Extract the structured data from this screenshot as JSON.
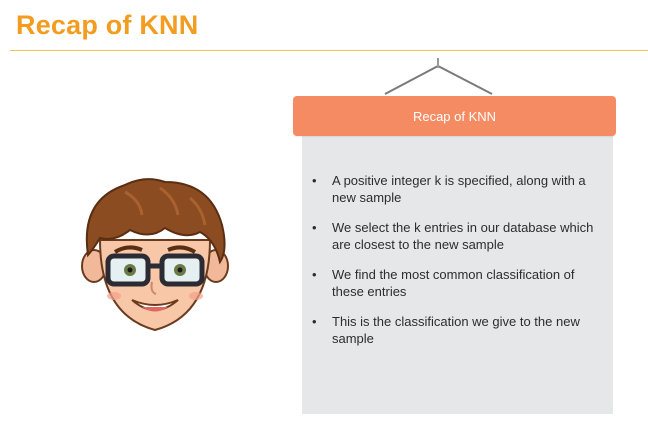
{
  "slide": {
    "title": "Recap of KNN"
  },
  "board": {
    "header": "Recap of KNN",
    "bullets": [
      "A positive integer k is specified, along with a new sample",
      "We select the k entries in our database which are closest to the new sample",
      "We find the most common classification of these entries",
      "This is the classification we give to the new sample"
    ]
  },
  "colors": {
    "title": "#f39c1f",
    "header": "#f58b62",
    "board": "#e5e7e9"
  },
  "icons": {
    "avatar": "cartoon-boy-with-glasses-icon",
    "bullet": "bullet-dot-icon"
  }
}
